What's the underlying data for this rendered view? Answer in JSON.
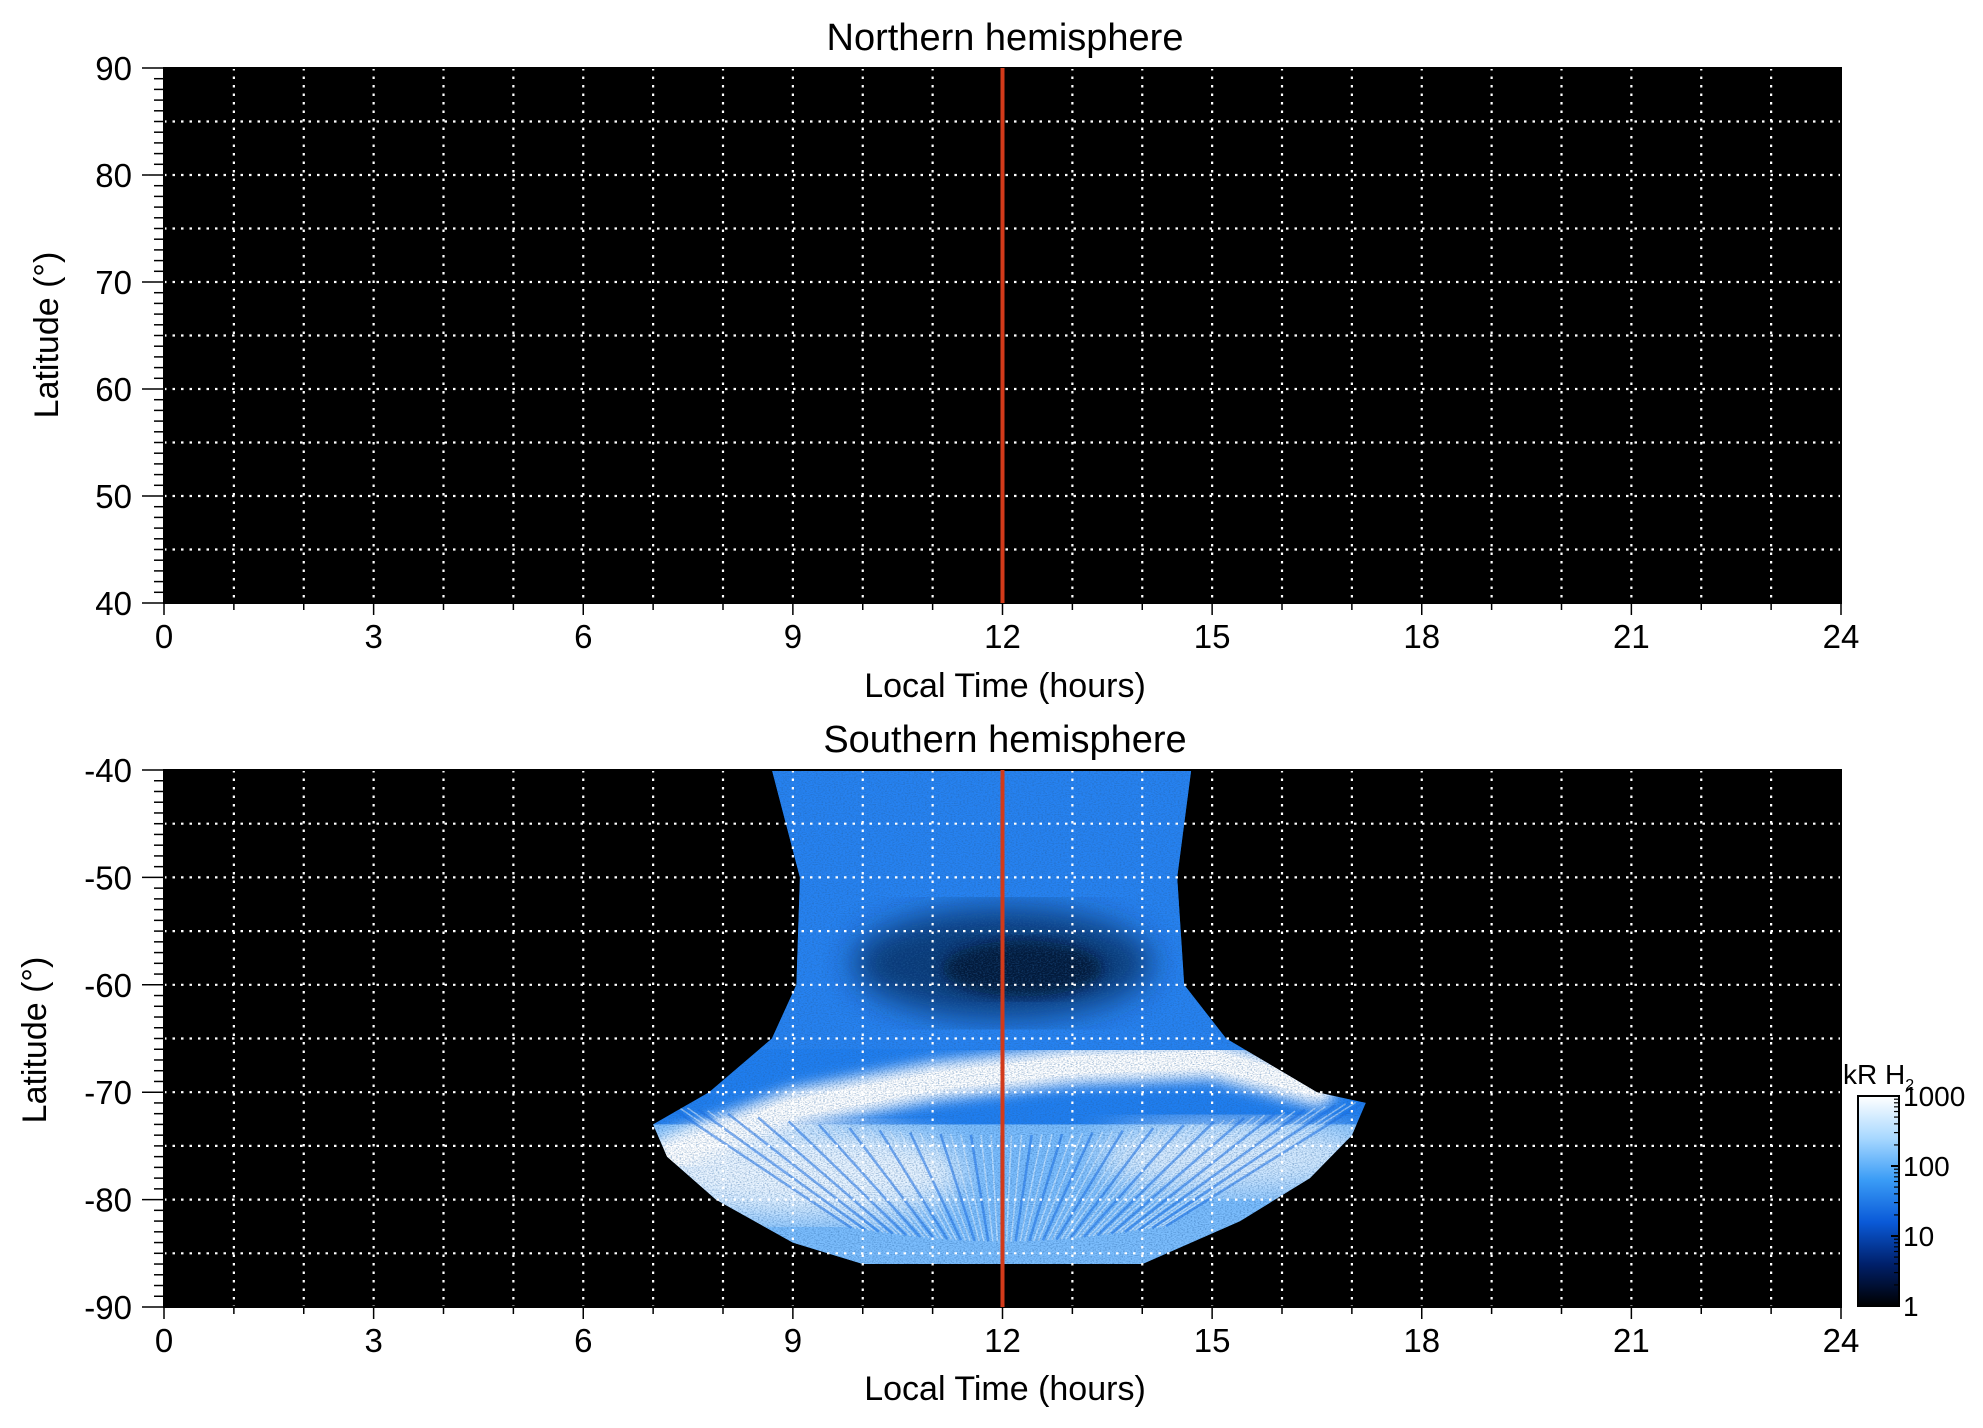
{
  "chart_data": [
    {
      "type": "heatmap",
      "title": "Northern hemisphere",
      "xlabel": "Local Time (hours)",
      "ylabel": "Latitude (°)",
      "xlim": [
        0,
        24
      ],
      "ylim": [
        40,
        90
      ],
      "xticks": [
        "0",
        "3",
        "6",
        "9",
        "12",
        "15",
        "18",
        "21",
        "24"
      ],
      "yticks": [
        "40",
        "50",
        "60",
        "70",
        "80",
        "90"
      ],
      "grid": true,
      "background": "#000000",
      "marker_line": {
        "x": 12,
        "color": "#d23a1a"
      },
      "emission": []
    },
    {
      "type": "heatmap",
      "title": "Southern hemisphere",
      "xlabel": "Local Time (hours)",
      "ylabel": "Latitude (°)",
      "xlim": [
        0,
        24
      ],
      "ylim": [
        -90,
        -40
      ],
      "xticks": [
        "0",
        "3",
        "6",
        "9",
        "12",
        "15",
        "18",
        "21",
        "24"
      ],
      "yticks": [
        "-90",
        "-80",
        "-70",
        "-60",
        "-50",
        "-40"
      ],
      "grid": true,
      "background": "#000000",
      "marker_line": {
        "x": 12,
        "color": "#d23a1a"
      },
      "emission_region": {
        "left_edge": [
          [
            -40,
            8.7
          ],
          [
            -50,
            9.1
          ],
          [
            -60,
            9.05
          ],
          [
            -65,
            8.7
          ],
          [
            -70,
            7.8
          ],
          [
            -73,
            7.0
          ],
          [
            -76,
            7.2
          ],
          [
            -80,
            7.9
          ],
          [
            -84,
            9.0
          ],
          [
            -86,
            10.0
          ]
        ],
        "right_edge": [
          [
            -40,
            14.7
          ],
          [
            -50,
            14.5
          ],
          [
            -60,
            14.6
          ],
          [
            -65,
            15.2
          ],
          [
            -70,
            16.5
          ],
          [
            -71,
            17.2
          ],
          [
            -74,
            17.0
          ],
          [
            -78,
            16.4
          ],
          [
            -82,
            15.4
          ],
          [
            -86,
            14.0
          ]
        ],
        "bottom_lat": -86,
        "oval_band": [
          {
            "lt": 7.2,
            "lat": -76
          },
          {
            "lt": 9,
            "lat": -71.5
          },
          {
            "lt": 11,
            "lat": -69
          },
          {
            "lt": 13,
            "lat": -67.5
          },
          {
            "lt": 15,
            "lat": -67
          },
          {
            "lt": 16.5,
            "lat": -69.5
          }
        ],
        "dark_patch": {
          "lt": 12,
          "lat": -58
        }
      }
    }
  ],
  "colorbar": {
    "label": "kR H",
    "label_subscript": "2",
    "ticks": [
      "1",
      "10",
      "100",
      "1000"
    ],
    "stops": [
      "#000000",
      "#00206b",
      "#0a5ad8",
      "#3a9cf6",
      "#a8d8ff",
      "#ffffff"
    ]
  }
}
